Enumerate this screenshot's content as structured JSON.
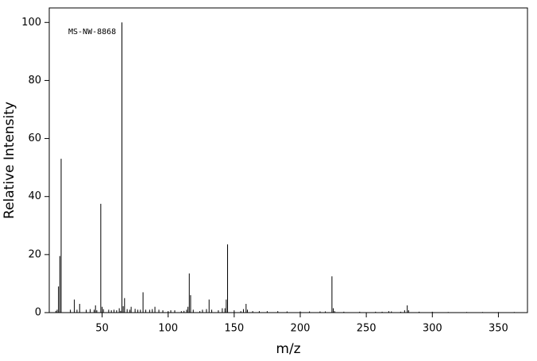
{
  "chart_data": {
    "type": "stem",
    "annotation": "MS-NW-8868",
    "x_label": "m/z",
    "y_label": "Relative Intensity",
    "x": [
      15,
      16,
      17,
      18,
      19,
      26,
      29,
      31,
      33,
      38,
      41,
      44,
      45,
      46,
      49,
      50,
      51,
      55,
      57,
      59,
      61,
      63,
      64,
      65,
      66,
      67,
      69,
      71,
      72,
      75,
      77,
      79,
      81,
      83,
      86,
      88,
      90,
      93,
      96,
      100,
      102,
      105,
      110,
      112,
      114,
      115,
      116,
      117,
      119,
      124,
      126,
      129,
      131,
      133,
      138,
      141,
      143,
      144,
      145,
      150,
      155,
      157,
      159,
      160,
      164,
      169,
      175,
      183,
      190,
      200,
      207,
      215,
      219,
      224,
      225,
      226,
      233,
      245,
      257,
      262,
      267,
      269,
      276,
      279,
      281,
      282,
      290,
      300,
      312,
      326,
      338,
      350,
      362
    ],
    "values": [
      0.6,
      1,
      9,
      19.5,
      53,
      1,
      4.5,
      1,
      3,
      1,
      1.2,
      1,
      2.5,
      0.8,
      37.5,
      2,
      1.2,
      1,
      0.8,
      1,
      0.8,
      1.5,
      0.6,
      100,
      2.2,
      5,
      1.2,
      1,
      2,
      1.3,
      1,
      1,
      7,
      1,
      1,
      1.2,
      2,
      1,
      0.8,
      0.5,
      0.8,
      0.8,
      0.5,
      0.6,
      1,
      2,
      13.5,
      6,
      1,
      0.5,
      1,
      1.2,
      4.5,
      1,
      0.8,
      1.5,
      1.5,
      4.5,
      23.5,
      0.8,
      0.5,
      1.2,
      3,
      1,
      0.5,
      0.5,
      0.5,
      0.5,
      0.4,
      0.4,
      0.4,
      0.4,
      0.4,
      12.5,
      1.5,
      0.5,
      0.3,
      0.3,
      0.3,
      0.3,
      0.5,
      0.4,
      0.3,
      0.8,
      2.5,
      0.8,
      0.3,
      0.3,
      0.2,
      0.2,
      0.2,
      0.2,
      0.2
    ],
    "color": "#000000",
    "xlim": [
      10,
      372
    ],
    "xticks": [
      50,
      100,
      150,
      200,
      250,
      300,
      350
    ],
    "ylim": [
      0,
      105
    ],
    "yticks": [
      0,
      20,
      40,
      60,
      80,
      100
    ]
  }
}
